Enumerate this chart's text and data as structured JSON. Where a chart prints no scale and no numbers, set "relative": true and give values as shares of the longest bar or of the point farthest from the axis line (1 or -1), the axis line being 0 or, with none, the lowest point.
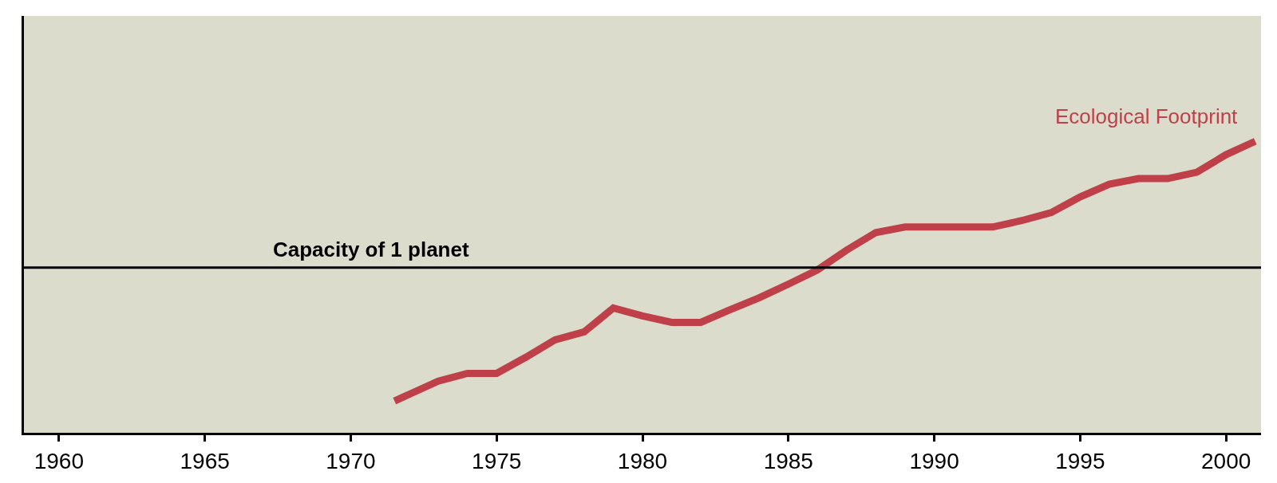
{
  "chart_data": {
    "type": "line",
    "relative": true,
    "x": [
      1971.5,
      1973,
      1974,
      1975,
      1976,
      1977,
      1978,
      1979,
      1980,
      1981,
      1982,
      1983,
      1984,
      1985,
      1986,
      1987,
      1988,
      1989,
      1990,
      1992,
      1993,
      1994,
      1995,
      1996,
      1997,
      1998,
      1999,
      2000,
      2001
    ],
    "series": [
      {
        "name": "Ecological Footprint",
        "color": "#c0404a",
        "values": [
          0.109,
          0.177,
          0.204,
          0.204,
          0.259,
          0.319,
          0.346,
          0.428,
          0.401,
          0.379,
          0.379,
          0.422,
          0.463,
          0.51,
          0.559,
          0.627,
          0.687,
          0.706,
          0.706,
          0.706,
          0.728,
          0.755,
          0.809,
          0.853,
          0.872,
          0.872,
          0.894,
          0.954,
          1
        ]
      }
    ],
    "xlim": [
      1958.8,
      2001.2
    ],
    "xticks": [
      1960,
      1965,
      1970,
      1975,
      1980,
      1985,
      1990,
      1995,
      2000
    ],
    "ref_lines": [
      {
        "axis": "y",
        "value": 0.567,
        "label": "Capacity of 1 planet",
        "color": "#000000"
      }
    ],
    "grid": false,
    "legend": false,
    "marker": "none",
    "line_style": "solid"
  }
}
